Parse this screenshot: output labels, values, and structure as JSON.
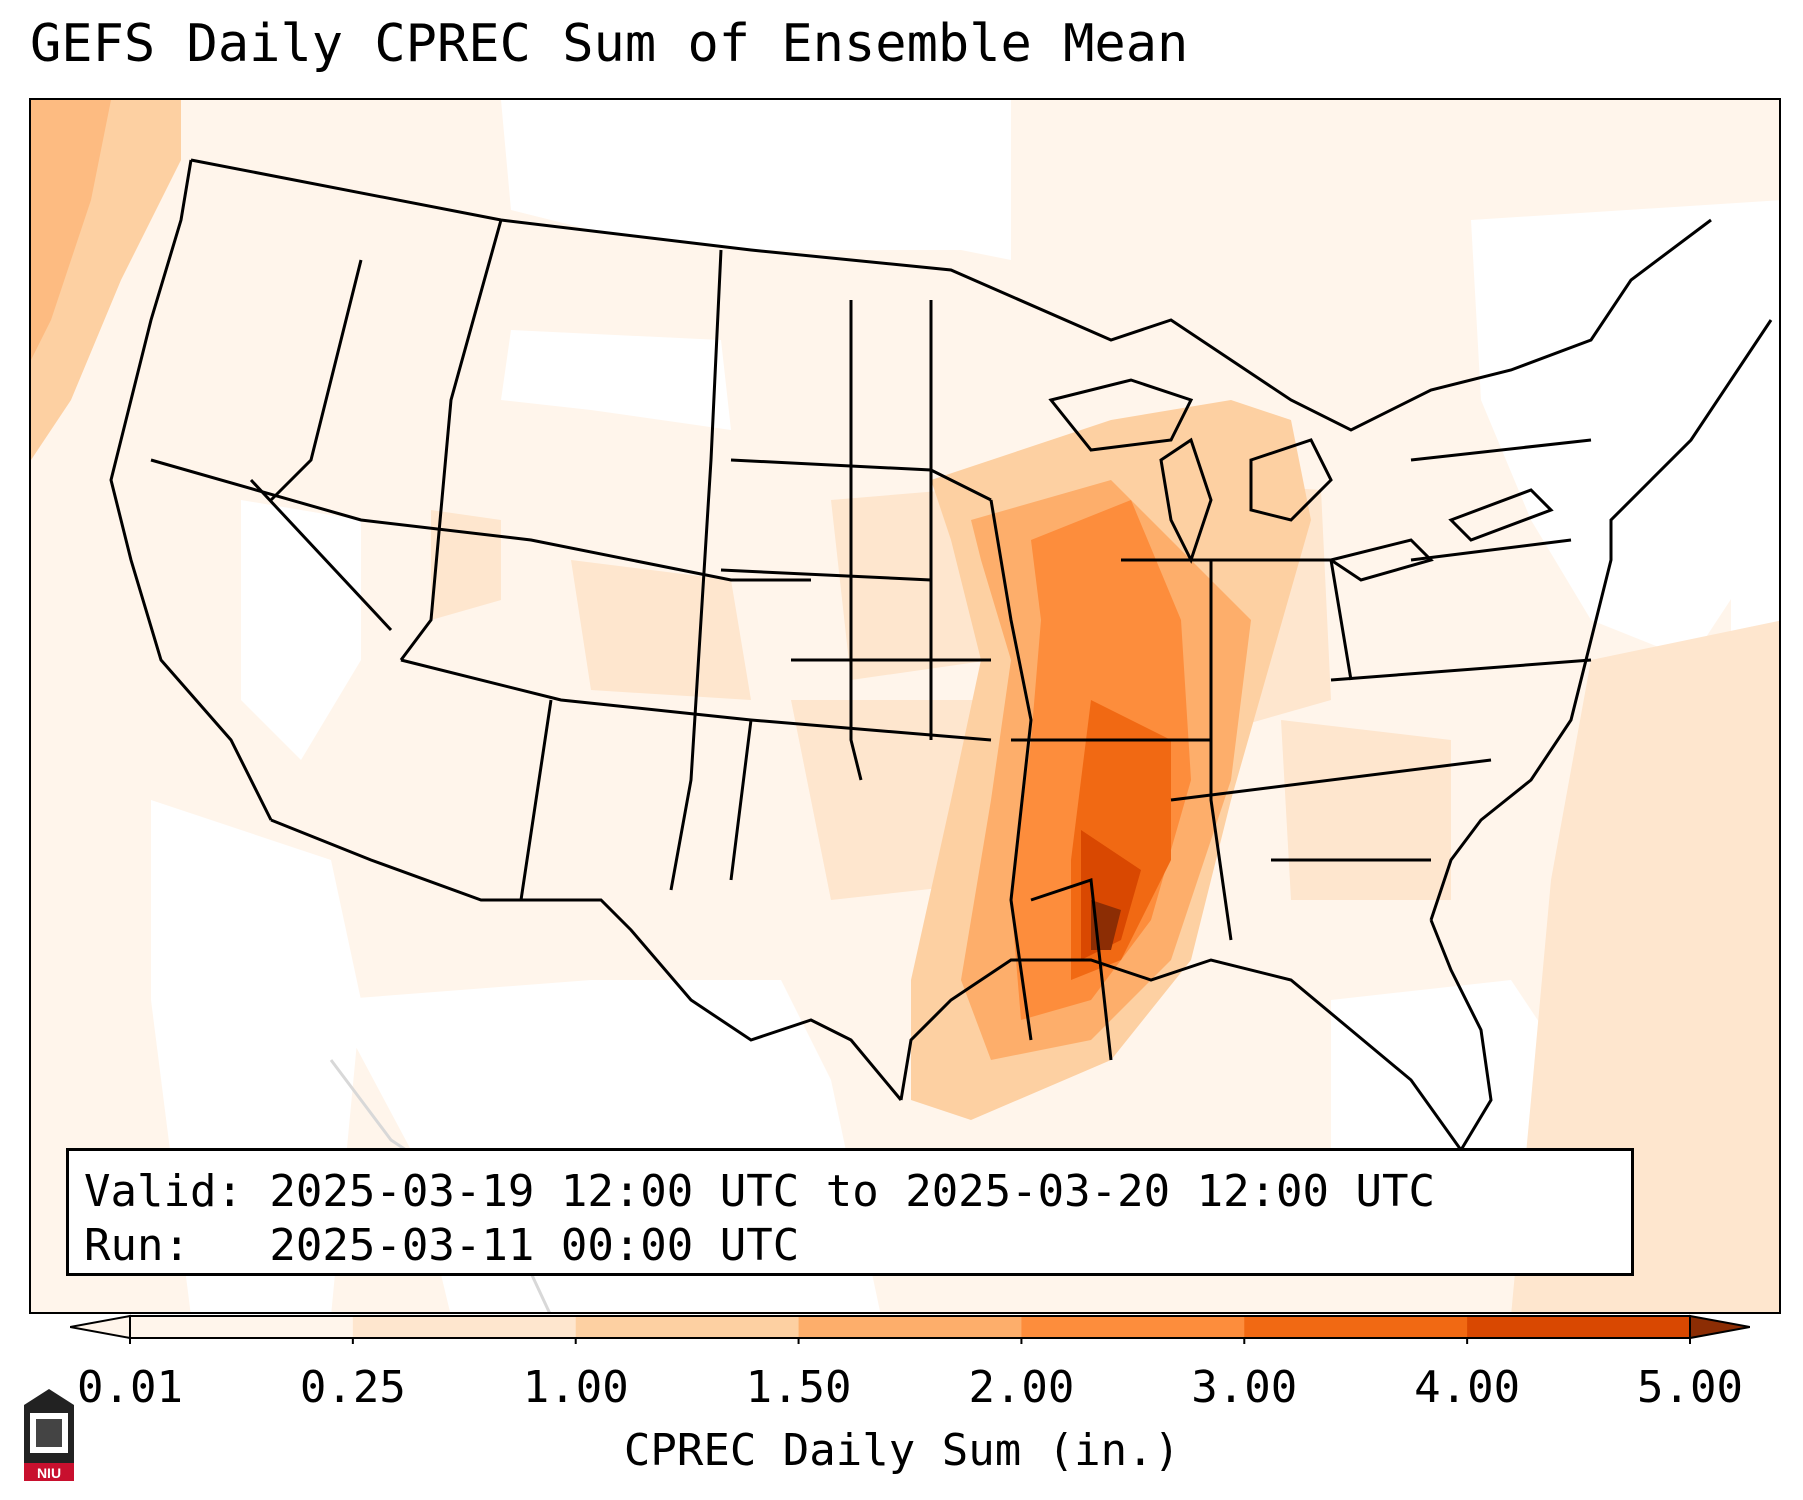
{
  "title": "GEFS Daily CPREC Sum of Ensemble Mean",
  "info": {
    "valid_line": "Valid: 2025-03-19 12:00 UTC to 2025-03-20 12:00 UTC",
    "run_line": "Run:   2025-03-11 00:00 UTC"
  },
  "colorbar": {
    "label": "CPREC Daily Sum (in.)",
    "ticks": [
      "0.01",
      "0.25",
      "1.00",
      "1.50",
      "2.00",
      "3.00",
      "4.00",
      "5.00"
    ],
    "colors": [
      "#fff5eb",
      "#fee6ce",
      "#fdd0a2",
      "#fdae6b",
      "#fd8d3c",
      "#f16913",
      "#d94801",
      "#8c2d04"
    ],
    "extend": "both"
  },
  "map": {
    "projection": "Lambert Conformal",
    "region": "CONUS",
    "features": [
      "coastlines",
      "state-borders",
      "country-borders"
    ],
    "precip_max_region": "Lower Mississippi Valley"
  },
  "logo": {
    "text": "NIU"
  }
}
